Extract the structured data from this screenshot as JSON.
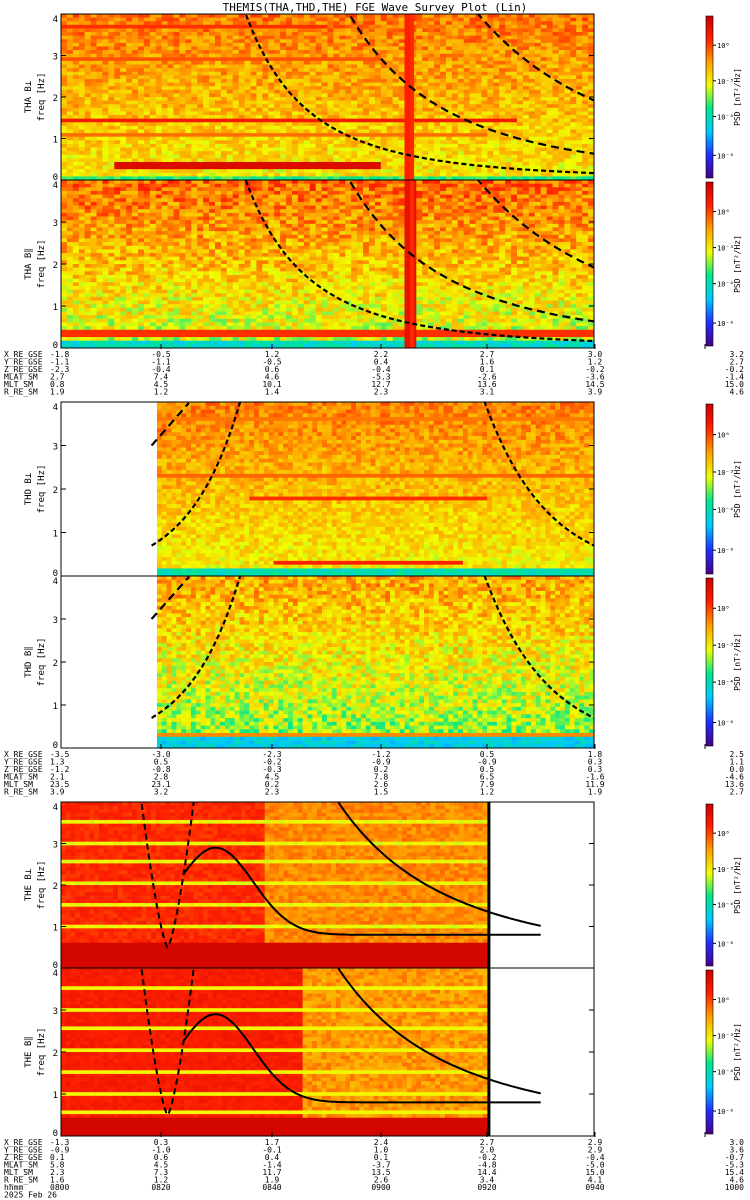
{
  "title": "THEMIS(THA,THD,THE) FGE Wave Survey Plot (Lin)",
  "colors": {
    "background": "#ffffff",
    "axis": "#000000",
    "curve": "#000000"
  },
  "colorbar": {
    "label": "PSD [nT²/Hz]",
    "ticks": [
      "10⁰",
      "10⁻³",
      "10⁻⁴",
      "10⁻⁶"
    ],
    "colormap": [
      "#4b0082",
      "#1f2fff",
      "#00c8ff",
      "#00e68c",
      "#f0ff00",
      "#ffa000",
      "#ff2000",
      "#c80000"
    ]
  },
  "chart_data": [
    {
      "type": "heatmap",
      "id": "tha_bl",
      "ylabel": "THA B⊥",
      "ylabel2": "freq [Hz]",
      "ylim": [
        0,
        4
      ],
      "yticks": [
        "0",
        "1",
        "2",
        "3",
        "4"
      ],
      "texture": "tha_bl",
      "data_extent": [
        0,
        1
      ],
      "curves": [
        "tha"
      ]
    },
    {
      "type": "heatmap",
      "id": "tha_bii",
      "ylabel": "THA B∥",
      "ylabel2": "freq [Hz]",
      "ylim": [
        0,
        4
      ],
      "yticks": [
        "0",
        "1",
        "2",
        "3",
        "4"
      ],
      "texture": "tha_bii",
      "data_extent": [
        0,
        1
      ],
      "curves": [
        "tha"
      ]
    },
    {
      "type": "heatmap",
      "id": "thd_bl",
      "ylabel": "THD B⊥",
      "ylabel2": "freq [Hz]",
      "ylim": [
        0,
        4
      ],
      "yticks": [
        "0",
        "1",
        "2",
        "3",
        "4"
      ],
      "texture": "thd_bl",
      "data_extent": [
        0.18,
        1
      ],
      "curves": [
        "thd"
      ]
    },
    {
      "type": "heatmap",
      "id": "thd_bii",
      "ylabel": "THD B∥",
      "ylabel2": "freq [Hz]",
      "ylim": [
        0,
        4
      ],
      "yticks": [
        "0",
        "1",
        "2",
        "3",
        "4"
      ],
      "texture": "thd_bii",
      "data_extent": [
        0.18,
        1
      ],
      "curves": [
        "thd"
      ]
    },
    {
      "type": "heatmap",
      "id": "the_bl",
      "ylabel": "THE B⊥",
      "ylabel2": "freq [Hz]",
      "ylim": [
        0,
        4
      ],
      "yticks": [
        "0",
        "1",
        "2",
        "3",
        "4"
      ],
      "texture": "the_bl",
      "data_extent": [
        0,
        0.8
      ],
      "curves": [
        "the"
      ]
    },
    {
      "type": "heatmap",
      "id": "the_bii",
      "ylabel": "THE B∥",
      "ylabel2": "freq [Hz]",
      "ylim": [
        0,
        4
      ],
      "yticks": [
        "0",
        "1",
        "2",
        "3",
        "4"
      ],
      "texture": "the_bii",
      "data_extent": [
        0,
        0.8
      ],
      "curves": [
        "the"
      ]
    }
  ],
  "ephemeris_tables": [
    {
      "labels": [
        "X_RE_GSE",
        "Y_RE_GSE",
        "Z_RE_GSE",
        "MLAT_SM",
        "MLT_SM",
        "R_RE_SM"
      ],
      "columns": [
        [
          "-1.8",
          "-1.1",
          "-2.3",
          "2.7",
          "0.8",
          "1.9"
        ],
        [
          "-0.5",
          "-1.1",
          "-0.4",
          "7.4",
          "4.5",
          "1.2"
        ],
        [
          "1.2",
          "-0.5",
          "0.6",
          "4.6",
          "10.1",
          "1.4"
        ],
        [
          "2.2",
          "0.4",
          "-0.4",
          "-5.3",
          "12.7",
          "2.3"
        ],
        [
          "2.7",
          "1.6",
          "0.1",
          "-2.6",
          "13.6",
          "3.1"
        ],
        [
          "3.0",
          "1.2",
          "-0.2",
          "-3.6",
          "14.5",
          "3.9"
        ],
        [
          "3.2",
          "2.7",
          "-0.2",
          "-1.4",
          "15.0",
          "4.6"
        ]
      ]
    },
    {
      "labels": [
        "X_RE_GSE",
        "Y_RE_GSE",
        "Z_RE_GSE",
        "MLAT_SM",
        "MLT_SM",
        "R_RE_SM"
      ],
      "columns": [
        [
          "-3.5",
          "1.3",
          "-1.2",
          "2.1",
          "23.5",
          "3.9"
        ],
        [
          "-3.0",
          "0.5",
          "-0.8",
          "2.8",
          "23.1",
          "3.2"
        ],
        [
          "-2.3",
          "-0.2",
          "-0.3",
          "4.5",
          "0.2",
          "2.3"
        ],
        [
          "-1.2",
          "-0.9",
          "0.2",
          "7.8",
          "2.6",
          "1.5"
        ],
        [
          "0.5",
          "-0.9",
          "0.5",
          "6.5",
          "7.9",
          "1.2"
        ],
        [
          "1.8",
          "0.3",
          "0.3",
          "-1.6",
          "11.9",
          "1.9"
        ],
        [
          "2.5",
          "1.1",
          "0.0",
          "-4.6",
          "13.6",
          "2.7"
        ]
      ]
    },
    {
      "labels": [
        "X_RE_GSE",
        "Y_RE_GSE",
        "Z_RE_GSE",
        "MLAT_SM",
        "MLT_SM",
        "R_RE_SM",
        "hhmm",
        "2025 Feb 26"
      ],
      "columns": [
        [
          "-1.3",
          "-0.9",
          "0.1",
          "5.8",
          "2.3",
          "1.6",
          "0800"
        ],
        [
          "0.3",
          "-1.0",
          "0.6",
          "4.5",
          "7.3",
          "1.2",
          "0820"
        ],
        [
          "1.7",
          "-0.1",
          "0.4",
          "-1.4",
          "11.7",
          "1.9",
          "0840"
        ],
        [
          "2.4",
          "1.0",
          "0.1",
          "-3.7",
          "13.5",
          "2.6",
          "0900"
        ],
        [
          "2.7",
          "2.0",
          "-0.2",
          "-4.8",
          "14.4",
          "3.4",
          "0920"
        ],
        [
          "2.9",
          "2.9",
          "-0.4",
          "-5.0",
          "15.0",
          "4.1",
          "0940"
        ],
        [
          "3.0",
          "3.6",
          "-0.7",
          "-5.3",
          "15.4",
          "4.6",
          "1000"
        ]
      ]
    }
  ]
}
